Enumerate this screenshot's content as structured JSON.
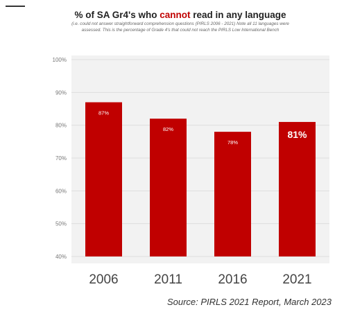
{
  "title": {
    "before": "% of SA Gr4's who ",
    "highlight": "cannot",
    "after": " read in any language"
  },
  "subtitle": "(i.e. could not answer straightforward comprehension questions (PIRLS 2006 - 2021) Note all 11 languages were assessed. This is the percentage of Grade 4's that could not reach the PIRLS Low International Bench",
  "source": "Source: PIRLS 2021 Report, March 2023",
  "colors": {
    "bar": "#c00000",
    "highlight": "#c00000",
    "panel": "#f2f2f2",
    "grid": "#dddddd"
  },
  "chart_data": {
    "type": "bar",
    "title": "% of SA Gr4's who cannot read in any language",
    "categories": [
      "2006",
      "2011",
      "2016",
      "2021"
    ],
    "values": [
      87,
      82,
      78,
      81
    ],
    "data_labels": [
      "87%",
      "82%",
      "78%",
      "81%"
    ],
    "yticks": [
      "40%",
      "50%",
      "60%",
      "70%",
      "80%",
      "90%",
      "100%"
    ],
    "ylim": [
      40,
      100
    ],
    "grid": true,
    "legend": false,
    "emphasized_label_index": 3
  }
}
